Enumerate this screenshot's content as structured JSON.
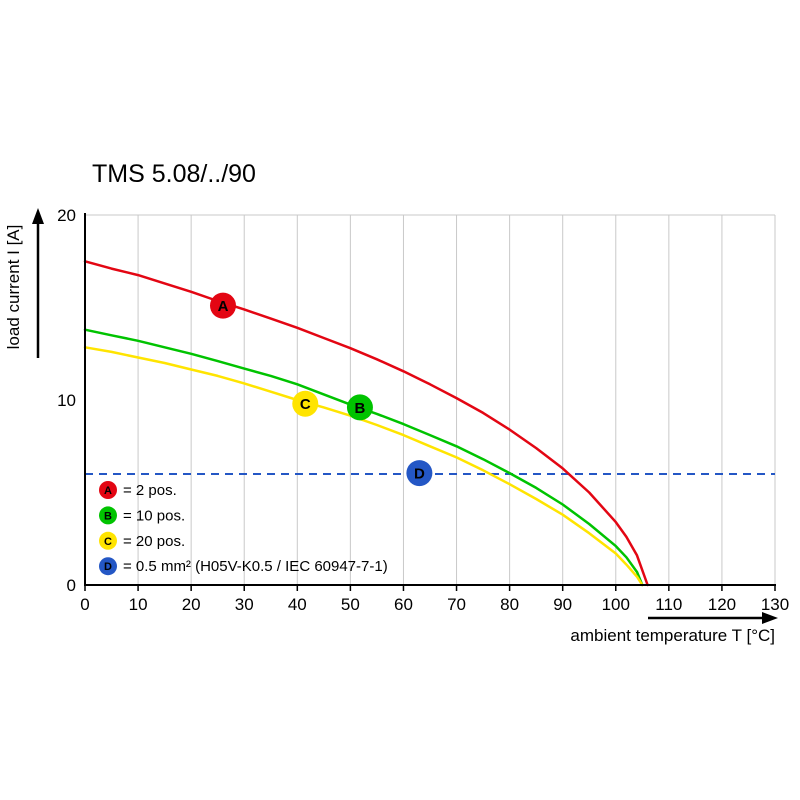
{
  "title": "TMS 5.08/../90",
  "chart_data": {
    "type": "line",
    "title": "TMS 5.08/../90",
    "xlabel": "ambient temperature T [°C]",
    "ylabel": "load current I [A]",
    "xlim": [
      0,
      130
    ],
    "ylim": [
      0,
      20
    ],
    "x_ticks": [
      0,
      10,
      20,
      30,
      40,
      50,
      60,
      70,
      80,
      90,
      100,
      110,
      120,
      130
    ],
    "y_ticks": [
      0,
      10,
      20
    ],
    "grid": "vertical",
    "grid_color": "#c9c9c9",
    "series": [
      {
        "name": "A",
        "color": "#e30613",
        "points": [
          [
            0,
            17.5
          ],
          [
            5,
            17.1
          ],
          [
            10,
            16.75
          ],
          [
            15,
            16.3
          ],
          [
            20,
            15.85
          ],
          [
            25,
            15.35
          ],
          [
            30,
            14.9
          ],
          [
            35,
            14.4
          ],
          [
            40,
            13.9
          ],
          [
            45,
            13.35
          ],
          [
            50,
            12.8
          ],
          [
            55,
            12.2
          ],
          [
            60,
            11.55
          ],
          [
            65,
            10.85
          ],
          [
            70,
            10.1
          ],
          [
            75,
            9.3
          ],
          [
            80,
            8.4
          ],
          [
            85,
            7.4
          ],
          [
            90,
            6.3
          ],
          [
            95,
            5.0
          ],
          [
            100,
            3.4
          ],
          [
            102,
            2.6
          ],
          [
            104,
            1.6
          ],
          [
            106,
            0
          ]
        ]
      },
      {
        "name": "B",
        "color": "#00c300",
        "points": [
          [
            0,
            13.8
          ],
          [
            5,
            13.5
          ],
          [
            10,
            13.2
          ],
          [
            15,
            12.85
          ],
          [
            20,
            12.5
          ],
          [
            25,
            12.1
          ],
          [
            30,
            11.7
          ],
          [
            35,
            11.3
          ],
          [
            40,
            10.85
          ],
          [
            45,
            10.3
          ],
          [
            50,
            9.75
          ],
          [
            55,
            9.25
          ],
          [
            60,
            8.7
          ],
          [
            65,
            8.1
          ],
          [
            70,
            7.5
          ],
          [
            75,
            6.8
          ],
          [
            80,
            6.05
          ],
          [
            85,
            5.25
          ],
          [
            90,
            4.35
          ],
          [
            95,
            3.3
          ],
          [
            100,
            2.1
          ],
          [
            102,
            1.5
          ],
          [
            104,
            0.7
          ],
          [
            105,
            0
          ]
        ]
      },
      {
        "name": "C",
        "color": "#ffe400",
        "points": [
          [
            0,
            12.85
          ],
          [
            5,
            12.6
          ],
          [
            10,
            12.3
          ],
          [
            15,
            12.0
          ],
          [
            20,
            11.65
          ],
          [
            25,
            11.3
          ],
          [
            30,
            10.9
          ],
          [
            35,
            10.45
          ],
          [
            40,
            10.0
          ],
          [
            45,
            9.6
          ],
          [
            50,
            9.15
          ],
          [
            55,
            8.65
          ],
          [
            60,
            8.1
          ],
          [
            65,
            7.5
          ],
          [
            70,
            6.9
          ],
          [
            75,
            6.2
          ],
          [
            80,
            5.45
          ],
          [
            85,
            4.65
          ],
          [
            90,
            3.8
          ],
          [
            95,
            2.8
          ],
          [
            100,
            1.7
          ],
          [
            102,
            1.1
          ],
          [
            104,
            0.45
          ],
          [
            105,
            0
          ]
        ]
      }
    ],
    "reference_line": {
      "name": "D",
      "value": 6,
      "color": "#2457c5",
      "style": "dashed"
    },
    "markers": [
      {
        "label": "A",
        "color": "#e30613",
        "x": 26,
        "y": 15.1
      },
      {
        "label": "C",
        "color": "#ffe400",
        "x": 41.5,
        "y": 9.8
      },
      {
        "label": "B",
        "color": "#00c300",
        "x": 51.8,
        "y": 9.6
      },
      {
        "label": "D",
        "color": "#2457c5",
        "x": 63,
        "y": 6.05
      }
    ],
    "legend": [
      {
        "key": "A",
        "color": "#e30613",
        "label": "= 2 pos."
      },
      {
        "key": "B",
        "color": "#00c300",
        "label": "= 10 pos."
      },
      {
        "key": "C",
        "color": "#ffe400",
        "label": "= 20 pos."
      },
      {
        "key": "D",
        "color": "#2457c5",
        "label": "= 0.5 mm² (H05V-K0.5 / IEC 60947-7-1)"
      }
    ],
    "legend_position": "bottom-left-inside",
    "axis_color": "#000000"
  }
}
